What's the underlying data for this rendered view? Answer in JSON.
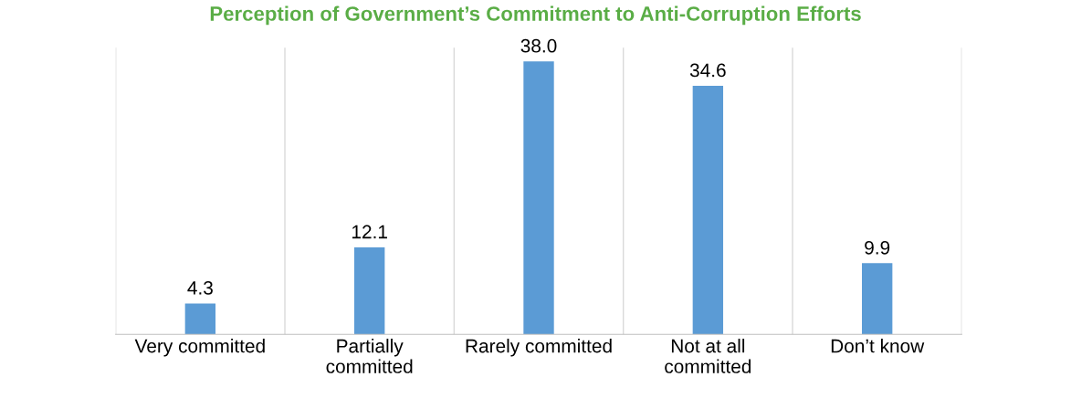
{
  "chart_data": {
    "type": "bar",
    "title": "Perception of Government’s Commitment to Anti-Corruption Efforts",
    "categories": [
      "Very committed",
      "Partially\ncommitted",
      "Rarely committed",
      "Not at all\ncommitted",
      "Don’t know"
    ],
    "values": [
      4.3,
      12.1,
      38.0,
      34.6,
      9.9
    ],
    "value_labels": [
      "4.3",
      "12.1",
      "38.0",
      "34.6",
      "9.9"
    ],
    "color": "#5b9bd5",
    "grid": "x",
    "legend": false
  }
}
